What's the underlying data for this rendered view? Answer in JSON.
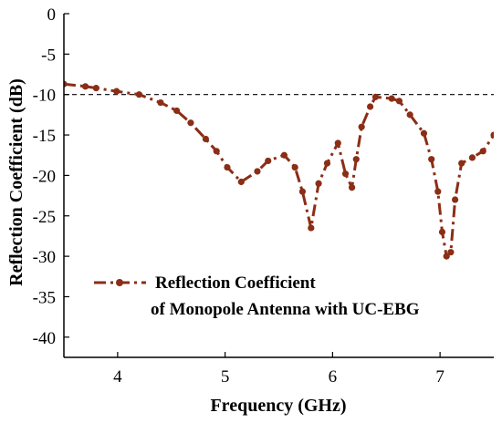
{
  "chart_data": {
    "type": "line",
    "xlabel": "Frequency (GHz)",
    "ylabel": "Reflection Coefficient (dB)",
    "xlim": [
      3.5,
      7.5
    ],
    "ylim": [
      -42.5,
      0
    ],
    "xticks": [
      4,
      5,
      6,
      7
    ],
    "yticks": [
      0,
      -5,
      -10,
      -15,
      -20,
      -25,
      -30,
      -35,
      -40
    ],
    "reference_line": {
      "y": -10,
      "style": "dashed",
      "color": "#000000"
    },
    "legend": {
      "line1": "Reflection Coefficient",
      "line2": "of Monopole Antenna with UC-EBG",
      "placement": "lower-left"
    },
    "series": [
      {
        "name": "Reflection Coefficient of Monopole Antenna with UC-EBG",
        "color": "#8B2E16",
        "style": "dash-dot",
        "marker": "circle",
        "x": [
          3.5,
          3.7,
          3.8,
          3.99,
          4.2,
          4.4,
          4.55,
          4.68,
          4.82,
          4.92,
          5.02,
          5.15,
          5.3,
          5.4,
          5.55,
          5.65,
          5.72,
          5.8,
          5.87,
          5.95,
          6.05,
          6.12,
          6.18,
          6.22,
          6.27,
          6.35,
          6.4,
          6.55,
          6.62,
          6.72,
          6.85,
          6.92,
          6.98,
          7.02,
          7.06,
          7.1,
          7.14,
          7.2,
          7.3,
          7.4,
          7.5
        ],
        "y": [
          -8.7,
          -9.0,
          -9.2,
          -9.6,
          -10.0,
          -11.0,
          -12.0,
          -13.5,
          -15.5,
          -17.0,
          -19.0,
          -20.8,
          -19.5,
          -18.2,
          -17.5,
          -19.0,
          -22.0,
          -26.5,
          -21.0,
          -18.5,
          -16.0,
          -19.8,
          -21.5,
          -18.0,
          -14.0,
          -11.5,
          -10.3,
          -10.5,
          -10.8,
          -12.5,
          -14.8,
          -18.0,
          -22.0,
          -27.0,
          -30.0,
          -29.5,
          -23.0,
          -18.5,
          -17.8,
          -17.0,
          -15.0
        ]
      }
    ]
  }
}
